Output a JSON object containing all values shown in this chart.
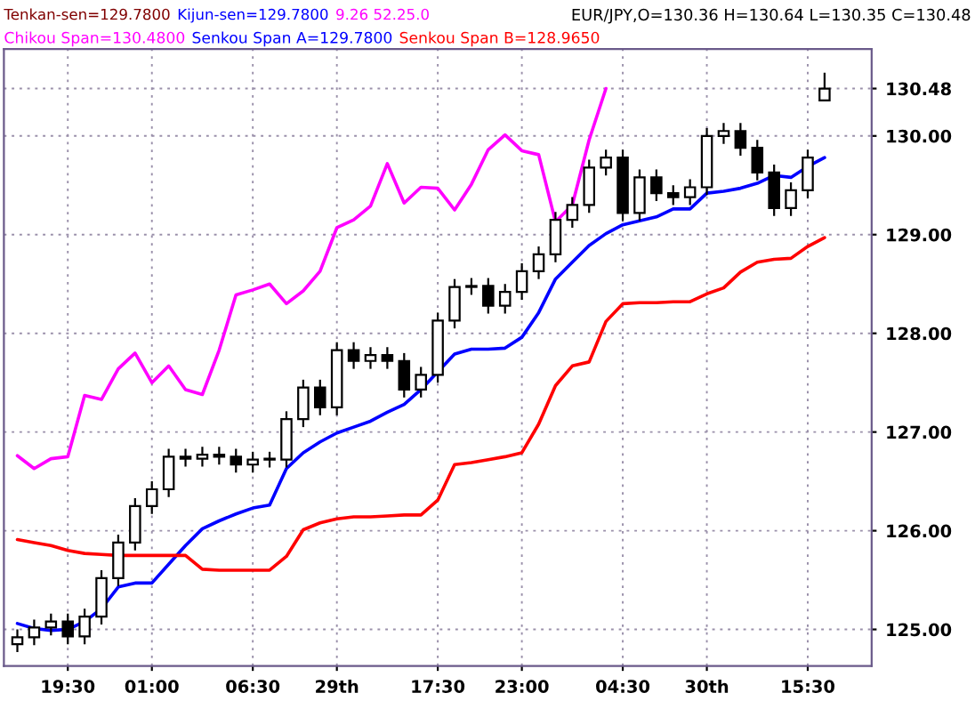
{
  "chart_data": {
    "type": "candlestick",
    "title": "EUR/JPY,O=130.36 H=130.64 L=130.35 C=130.48",
    "categories": [
      null,
      null,
      null,
      "19:30",
      null,
      null,
      null,
      null,
      "01:00",
      null,
      null,
      null,
      null,
      null,
      "06:30",
      null,
      null,
      null,
      null,
      "29th",
      null,
      null,
      null,
      null,
      null,
      "17:30",
      null,
      null,
      null,
      null,
      "23:00",
      null,
      null,
      null,
      null,
      null,
      "04:30",
      null,
      null,
      null,
      null,
      "30th",
      null,
      null,
      null,
      null,
      null,
      "15:30",
      null
    ],
    "ohlc": [
      [
        124.85,
        125.0,
        124.77,
        124.92
      ],
      [
        124.92,
        125.1,
        124.84,
        125.02
      ],
      [
        125.02,
        125.16,
        124.94,
        125.08
      ],
      [
        125.08,
        125.16,
        124.85,
        124.93
      ],
      [
        124.93,
        125.21,
        124.85,
        125.13
      ],
      [
        125.13,
        125.6,
        125.05,
        125.52
      ],
      [
        125.52,
        125.96,
        125.44,
        125.88
      ],
      [
        125.88,
        126.33,
        125.8,
        126.25
      ],
      [
        126.25,
        126.5,
        126.17,
        126.42
      ],
      [
        126.42,
        126.83,
        126.34,
        126.75
      ],
      [
        126.75,
        126.83,
        126.65,
        126.73
      ],
      [
        126.73,
        126.85,
        126.65,
        126.77
      ],
      [
        126.77,
        126.85,
        126.67,
        126.75
      ],
      [
        126.75,
        126.83,
        126.59,
        126.67
      ],
      [
        126.67,
        126.8,
        126.59,
        126.72
      ],
      [
        126.72,
        126.8,
        126.64,
        126.72
      ],
      [
        126.72,
        127.21,
        126.64,
        127.13
      ],
      [
        127.13,
        127.53,
        127.05,
        127.45
      ],
      [
        127.45,
        127.53,
        127.17,
        127.25
      ],
      [
        127.25,
        127.91,
        127.17,
        127.83
      ],
      [
        127.83,
        127.91,
        127.64,
        127.72
      ],
      [
        127.72,
        127.86,
        127.64,
        127.78
      ],
      [
        127.78,
        127.86,
        127.64,
        127.72
      ],
      [
        127.72,
        127.8,
        127.35,
        127.43
      ],
      [
        127.43,
        127.66,
        127.35,
        127.58
      ],
      [
        127.58,
        128.21,
        127.5,
        128.13
      ],
      [
        128.13,
        128.55,
        128.05,
        128.47
      ],
      [
        128.47,
        128.56,
        128.39,
        128.48
      ],
      [
        128.48,
        128.56,
        128.2,
        128.28
      ],
      [
        128.28,
        128.5,
        128.2,
        128.42
      ],
      [
        128.42,
        128.71,
        128.34,
        128.63
      ],
      [
        128.63,
        128.88,
        128.55,
        128.8
      ],
      [
        128.8,
        129.23,
        128.72,
        129.15
      ],
      [
        129.15,
        129.38,
        129.07,
        129.3
      ],
      [
        129.3,
        129.76,
        129.22,
        129.68
      ],
      [
        129.68,
        129.86,
        129.6,
        129.78
      ],
      [
        129.78,
        129.86,
        129.14,
        129.22
      ],
      [
        129.22,
        129.66,
        129.14,
        129.58
      ],
      [
        129.58,
        129.66,
        129.34,
        129.42
      ],
      [
        129.42,
        129.5,
        129.3,
        129.38
      ],
      [
        129.38,
        129.56,
        129.3,
        129.48
      ],
      [
        129.48,
        130.08,
        129.4,
        130.0
      ],
      [
        130.0,
        130.13,
        129.92,
        130.05
      ],
      [
        130.05,
        130.13,
        129.8,
        129.88
      ],
      [
        129.88,
        129.96,
        129.55,
        129.63
      ],
      [
        129.63,
        129.71,
        129.19,
        129.27
      ],
      [
        129.27,
        129.53,
        129.19,
        129.45
      ],
      [
        129.45,
        129.86,
        129.37,
        129.78
      ],
      [
        130.36,
        130.64,
        130.35,
        130.48
      ]
    ],
    "series": [
      {
        "type": "line",
        "name": "Chikou Span=130.4800",
        "color": "#ff00ff",
        "values": [
          126.76,
          126.63,
          126.73,
          126.75,
          127.37,
          127.33,
          127.64,
          127.8,
          127.5,
          127.67,
          127.43,
          127.38,
          127.83,
          128.39,
          128.44,
          128.5,
          128.3,
          128.43,
          128.63,
          129.07,
          129.15,
          129.29,
          129.72,
          129.32,
          129.48,
          129.47,
          129.25,
          129.51,
          129.86,
          130.01,
          129.85,
          129.81,
          129.13,
          129.3,
          129.96,
          130.48,
          null,
          null,
          null,
          null,
          null,
          null,
          null,
          null,
          null,
          null,
          null,
          null,
          null
        ]
      },
      {
        "type": "line",
        "name": "Senkou Span A=129.7800",
        "color": "#0000ff",
        "values": [
          125.06,
          125.01,
          124.99,
          125.0,
          125.08,
          125.21,
          125.43,
          125.47,
          125.47,
          125.66,
          125.85,
          126.02,
          126.1,
          126.17,
          126.23,
          126.26,
          126.63,
          126.79,
          126.9,
          126.99,
          127.05,
          127.11,
          127.2,
          127.28,
          127.43,
          127.61,
          127.79,
          127.84,
          127.84,
          127.85,
          127.96,
          128.21,
          128.55,
          128.72,
          128.89,
          129.01,
          129.1,
          129.14,
          129.18,
          129.26,
          129.26,
          129.42,
          129.44,
          129.47,
          129.52,
          129.6,
          129.58,
          129.69,
          129.78
        ]
      },
      {
        "type": "line",
        "name": "Senkou Span B=128.9650",
        "color": "#ff0000",
        "values": [
          125.91,
          125.88,
          125.85,
          125.8,
          125.77,
          125.76,
          125.75,
          125.75,
          125.75,
          125.75,
          125.75,
          125.61,
          125.6,
          125.6,
          125.6,
          125.6,
          125.74,
          126.01,
          126.08,
          126.12,
          126.14,
          126.14,
          126.15,
          126.16,
          126.16,
          126.31,
          126.67,
          126.69,
          126.72,
          126.75,
          126.79,
          127.08,
          127.47,
          127.67,
          127.71,
          128.12,
          128.3,
          128.31,
          128.31,
          128.32,
          128.32,
          128.4,
          128.46,
          128.62,
          128.72,
          128.75,
          128.76,
          128.88,
          128.97
        ]
      }
    ],
    "annotations": [
      "Tenkan-sen=129.7800",
      "Kijun-sen=129.7800",
      "9.26 52.25.0"
    ],
    "legend": "top left",
    "ylim": [
      124.63,
      130.88
    ],
    "yticks": [
      {
        "value": 125,
        "label": "125.00"
      },
      {
        "value": 126,
        "label": "126.00"
      },
      {
        "value": 127,
        "label": "127.00"
      },
      {
        "value": 128,
        "label": "128.00"
      },
      {
        "value": 129,
        "label": "129.00"
      },
      {
        "value": 130,
        "label": "130.00"
      },
      {
        "value": 130.48,
        "label": "130.48"
      }
    ],
    "grid": true
  }
}
